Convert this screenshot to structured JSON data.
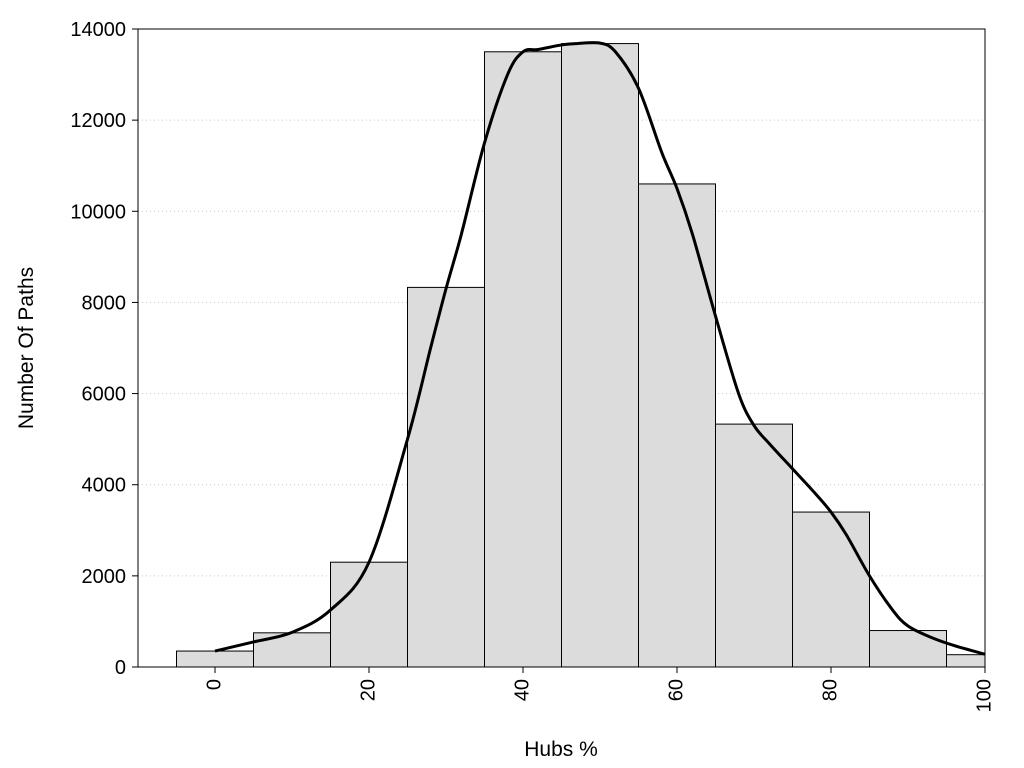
{
  "chart_data": {
    "type": "bar",
    "xlabel": "Hubs %",
    "ylabel": "Number Of Paths",
    "xlim": [
      -10,
      100
    ],
    "ylim": [
      0,
      14000
    ],
    "x_ticks": [
      0,
      20,
      40,
      60,
      80,
      100
    ],
    "y_ticks": [
      0,
      2000,
      4000,
      6000,
      8000,
      10000,
      12000,
      14000
    ],
    "grid": true,
    "bin_width": 10,
    "categories": [
      0,
      10,
      20,
      30,
      40,
      50,
      60,
      70,
      80,
      90,
      100
    ],
    "values": [
      350,
      750,
      2300,
      8330,
      13500,
      13680,
      10600,
      5330,
      3400,
      800,
      270
    ],
    "density_curve": {
      "x": [
        0,
        5,
        10,
        15,
        20,
        25,
        28,
        30,
        32,
        35,
        38,
        40,
        42,
        45,
        47,
        50,
        52,
        55,
        58,
        60,
        62,
        65,
        68,
        70,
        72,
        75,
        78,
        80,
        82,
        85,
        88,
        90,
        93,
        96,
        100
      ],
      "y": [
        350,
        550,
        760,
        1250,
        2300,
        5000,
        7000,
        8300,
        9500,
        11500,
        13000,
        13500,
        13550,
        13650,
        13680,
        13690,
        13500,
        12700,
        11300,
        10500,
        9500,
        7700,
        6000,
        5300,
        4900,
        4350,
        3800,
        3400,
        2900,
        2000,
        1250,
        900,
        650,
        470,
        280
      ]
    },
    "colors": {
      "bar_fill": "#dcdcdc",
      "bar_stroke": "#000000",
      "curve": "#000000"
    }
  }
}
